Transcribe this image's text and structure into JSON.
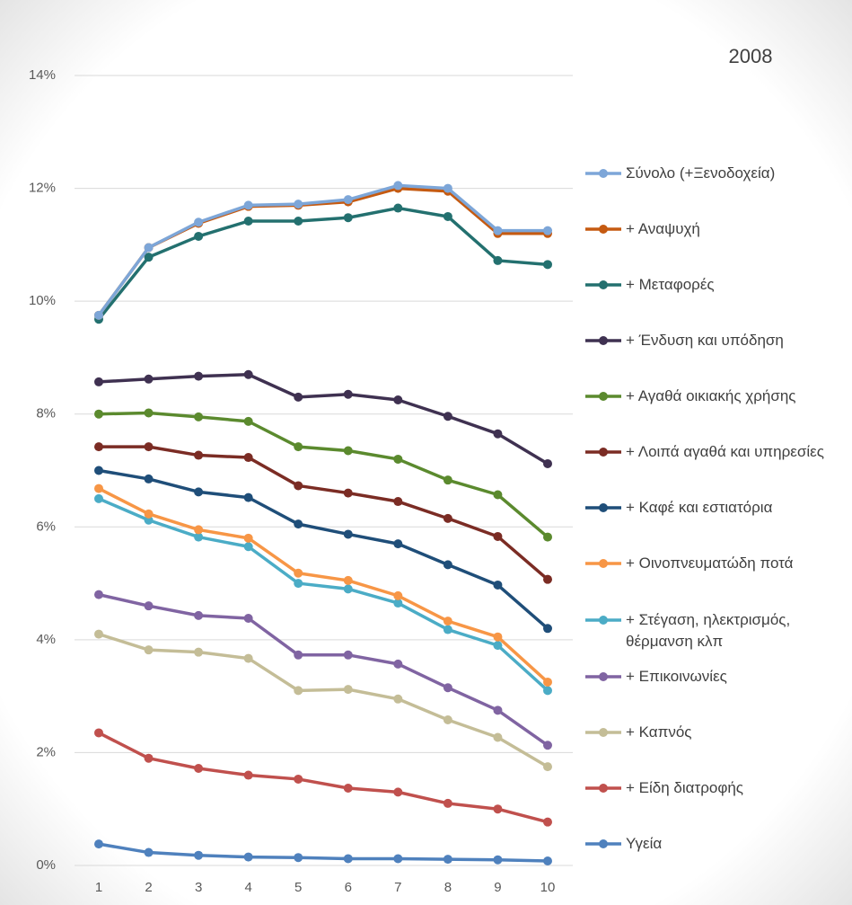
{
  "chart_data": {
    "type": "line",
    "title": "2008",
    "categories": [
      "1",
      "2",
      "3",
      "4",
      "5",
      "6",
      "7",
      "8",
      "9",
      "10"
    ],
    "ylim": [
      0,
      14
    ],
    "yticks": [
      {
        "value": 0,
        "label": "0%"
      },
      {
        "value": 2,
        "label": "2%"
      },
      {
        "value": 4,
        "label": "4%"
      },
      {
        "value": 6,
        "label": "6%"
      },
      {
        "value": 8,
        "label": "8%"
      },
      {
        "value": 10,
        "label": "10%"
      },
      {
        "value": 12,
        "label": "12%"
      },
      {
        "value": 14,
        "label": "14%"
      }
    ],
    "grid": true,
    "series": [
      {
        "name": "Σύνολο (+Ξενοδοχεία)",
        "color": "#7da6d8",
        "values": [
          9.75,
          10.95,
          11.4,
          11.7,
          11.72,
          11.8,
          12.05,
          12.0,
          11.25,
          11.25
        ]
      },
      {
        "name": "+ Αναψυχή",
        "color": "#c55a11",
        "values": [
          9.75,
          10.95,
          11.38,
          11.68,
          11.7,
          11.76,
          12.0,
          11.95,
          11.2,
          11.2
        ]
      },
      {
        "name": "+ Μεταφορές",
        "color": "#23706f",
        "values": [
          9.68,
          10.78,
          11.15,
          11.42,
          11.42,
          11.48,
          11.65,
          11.5,
          10.72,
          10.65
        ]
      },
      {
        "name": "+ Ένδυση και υπόδηση",
        "color": "#3f3151",
        "values": [
          8.57,
          8.62,
          8.67,
          8.7,
          8.3,
          8.35,
          8.25,
          7.96,
          7.65,
          7.12
        ]
      },
      {
        "name": "+ Αγαθά οικιακής χρήσης",
        "color": "#5b8a2e",
        "values": [
          8.0,
          8.02,
          7.95,
          7.87,
          7.42,
          7.35,
          7.2,
          6.83,
          6.57,
          5.82
        ]
      },
      {
        "name": "+ Λοιπά αγαθά και υπηρεσίες",
        "color": "#7b2c24",
        "values": [
          7.42,
          7.42,
          7.27,
          7.23,
          6.73,
          6.6,
          6.45,
          6.15,
          5.83,
          5.07
        ]
      },
      {
        "name": "+ Καφέ και εστιατόρια",
        "color": "#1f4e79",
        "values": [
          7.0,
          6.85,
          6.62,
          6.52,
          6.05,
          5.87,
          5.7,
          5.33,
          4.97,
          4.2
        ]
      },
      {
        "name": "+ Οινοπνευματώδη ποτά",
        "color": "#f79646",
        "values": [
          6.68,
          6.23,
          5.95,
          5.8,
          5.18,
          5.05,
          4.78,
          4.33,
          4.05,
          3.25
        ]
      },
      {
        "name": "+ Στέγαση, ηλεκτρισμός, θέρμανση κλπ",
        "color": "#4bacc6",
        "values": [
          6.5,
          6.12,
          5.82,
          5.65,
          5.0,
          4.9,
          4.65,
          4.18,
          3.9,
          3.1
        ]
      },
      {
        "name": "+ Επικοινωνίες",
        "color": "#8064a2",
        "values": [
          4.8,
          4.6,
          4.43,
          4.38,
          3.73,
          3.73,
          3.57,
          3.15,
          2.75,
          2.13
        ]
      },
      {
        "name": "+ Καπνός",
        "color": "#c4bd97",
        "values": [
          4.1,
          3.82,
          3.78,
          3.67,
          3.1,
          3.12,
          2.95,
          2.58,
          2.27,
          1.75
        ]
      },
      {
        "name": "+ Είδη διατροφής",
        "color": "#c0504d",
        "values": [
          2.35,
          1.9,
          1.72,
          1.6,
          1.53,
          1.37,
          1.3,
          1.1,
          1.0,
          0.77
        ]
      },
      {
        "name": "Υγεία",
        "color": "#4f81bd",
        "values": [
          0.38,
          0.23,
          0.18,
          0.15,
          0.14,
          0.12,
          0.12,
          0.11,
          0.1,
          0.08
        ]
      }
    ]
  }
}
